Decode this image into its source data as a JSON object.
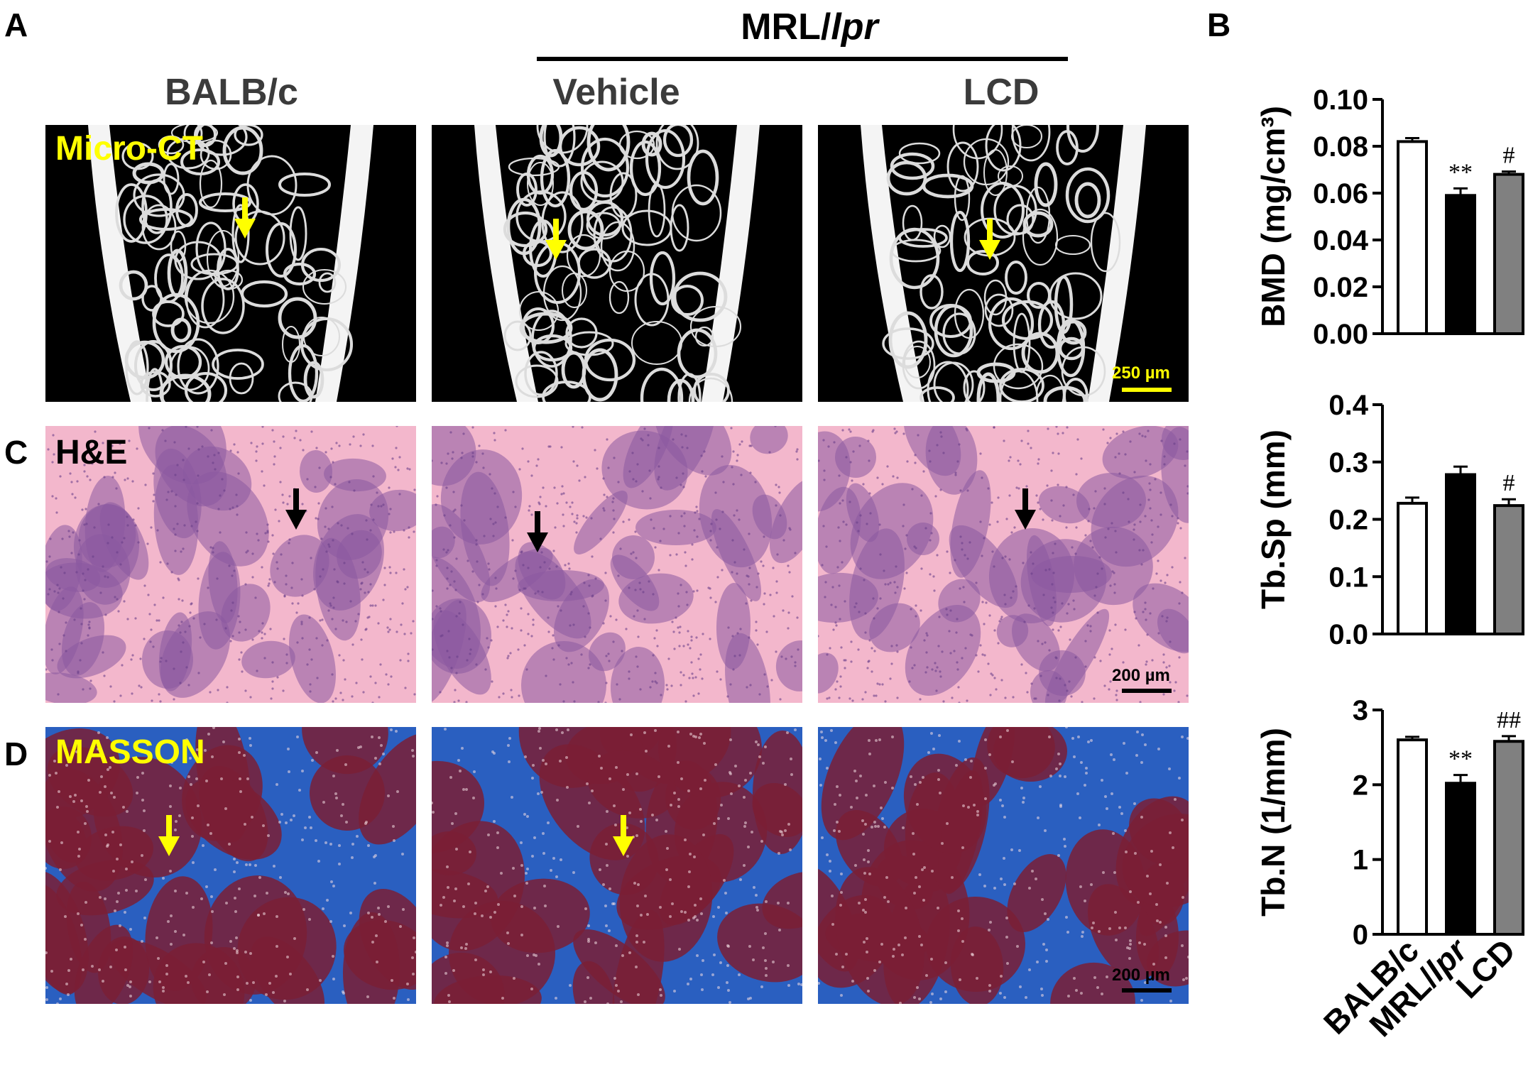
{
  "panel_letters": {
    "a": "A",
    "b": "B",
    "c": "C",
    "d": "D"
  },
  "header": {
    "strain_prefix": "MRL/",
    "strain_suffix": "lpr",
    "columns": [
      "BALB/c",
      "Vehicle",
      "LCD"
    ]
  },
  "rows": [
    {
      "label": "Micro-CT",
      "label_color": "#ffff00",
      "scale_bar": "250 µm",
      "scale_color": "#ffff00",
      "arrow_color": "#ffff00"
    },
    {
      "label": "H&E",
      "label_color": "#000000",
      "scale_bar": "200 µm",
      "scale_color": "#000000",
      "arrow_color": "#000000"
    },
    {
      "label": "MASSON",
      "label_color": "#ffff00",
      "scale_bar": "200 µm",
      "scale_color": "#000000",
      "arrow_color": "#ffff00"
    }
  ],
  "colors": {
    "ct_bg": "#000000",
    "he_bg": "#f3b7cc",
    "he_cells": "#8a5aa0",
    "masson_blue": "#2a5fc0",
    "masson_red": "#7a1f35",
    "bar_mrl": "#000000",
    "bar_lcd": "#808080"
  },
  "chart_data": [
    {
      "type": "bar",
      "categories": [
        "BALB/c",
        "MRL/lpr",
        "LCD"
      ],
      "values": [
        0.082,
        0.059,
        0.068
      ],
      "errors": [
        0.0015,
        0.003,
        0.0012
      ],
      "significance": [
        "",
        "**",
        "#"
      ],
      "ylabel": "BMD (mg/cm³)",
      "ylim": [
        0,
        0.1
      ],
      "yticks": [
        "0.00",
        "0.02",
        "0.04",
        "0.06",
        "0.08",
        "0.10"
      ]
    },
    {
      "type": "bar",
      "categories": [
        "BALB/c",
        "MRL/lpr",
        "LCD"
      ],
      "values": [
        0.228,
        0.278,
        0.224
      ],
      "errors": [
        0.01,
        0.014,
        0.011
      ],
      "significance": [
        "",
        "",
        "#"
      ],
      "ylabel": "Tb.Sp (mm)",
      "ylim": [
        0,
        0.4
      ],
      "yticks": [
        "0.0",
        "0.1",
        "0.2",
        "0.3",
        "0.4"
      ]
    },
    {
      "type": "bar",
      "categories": [
        "BALB/c",
        "MRL/lpr",
        "LCD"
      ],
      "values": [
        2.6,
        2.02,
        2.58
      ],
      "errors": [
        0.04,
        0.11,
        0.07
      ],
      "significance": [
        "",
        "**",
        "##"
      ],
      "ylabel": "Tb.N (1/mm)",
      "ylim": [
        0,
        3
      ],
      "yticks": [
        "0",
        "1",
        "2",
        "3"
      ],
      "xlabels": [
        "BALB/c",
        "MRL/lpr",
        "LCD"
      ]
    }
  ]
}
